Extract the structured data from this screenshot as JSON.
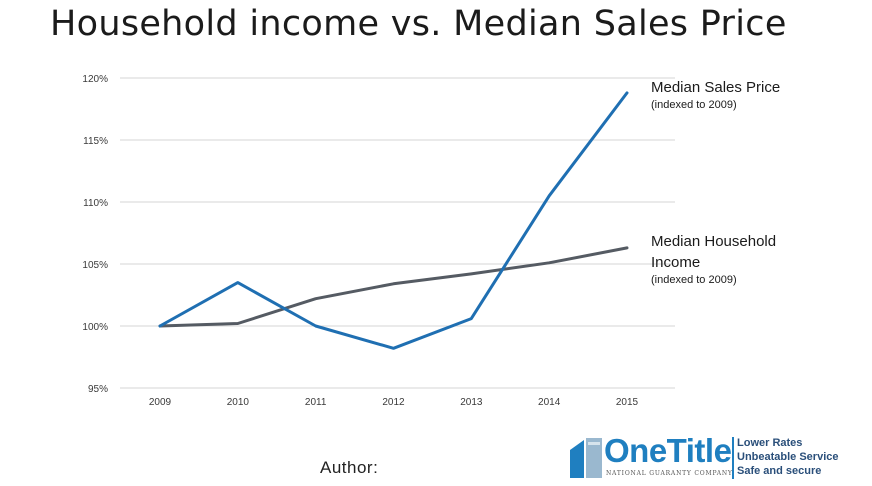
{
  "chart_data": {
    "type": "line",
    "title": "Household income vs. Median Sales Price",
    "xlabel": "",
    "ylabel": "",
    "categories": [
      "2009",
      "2010",
      "2011",
      "2012",
      "2013",
      "2014",
      "2015"
    ],
    "ylim": [
      95,
      120
    ],
    "yticks": [
      95,
      100,
      105,
      110,
      115,
      120
    ],
    "ytick_labels": [
      "95%",
      "100%",
      "105%",
      "110%",
      "115%",
      "120%"
    ],
    "grid": true,
    "series": [
      {
        "name": "Median Sales Price",
        "note": "(indexed to 2009)",
        "color": "#1f6fb2",
        "values": [
          100,
          103.5,
          100,
          98.2,
          100.6,
          110.5,
          118.8
        ]
      },
      {
        "name": "Median Household Income",
        "note": "(indexed to 2009)",
        "color": "#555b63",
        "values": [
          100,
          100.2,
          102.2,
          103.4,
          104.2,
          105.1,
          106.3
        ]
      }
    ]
  },
  "labels": {
    "price_name": "Median Sales Price",
    "price_note": "(indexed to 2009)",
    "income_name_line1": "Median Household",
    "income_name_line2": "Income",
    "income_note": "(indexed to 2009)"
  },
  "footer": {
    "author_label": "Author:"
  },
  "logo": {
    "name": "OneTitle",
    "subtitle": "NATIONAL GUARANTY COMPANY",
    "tagline": [
      "Lower Rates",
      "Unbeatable Service",
      "Safe and secure"
    ],
    "brand_color": "#1f7fc0"
  }
}
